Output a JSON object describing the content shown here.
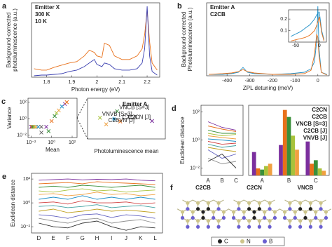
{
  "chart_data": [
    {
      "type": "line",
      "panel": "a",
      "xlabel": "Photon energy (eV)",
      "ylabel": [
        "Background-corrected",
        "photoluminescence (a.u.)"
      ],
      "legend": "upper left",
      "legend_title": "Emitter X",
      "x": [
        1.75,
        1.78,
        1.8,
        1.83,
        1.86,
        1.89,
        1.92,
        1.95,
        1.97,
        1.99,
        2.0,
        2.02,
        2.03,
        2.05,
        2.07,
        2.1,
        2.13,
        2.16,
        2.18,
        2.19,
        2.2,
        2.21,
        2.22,
        2.24
      ],
      "series": [
        {
          "name": "300 K",
          "color": "#e8701a",
          "values": [
            0.12,
            0.1,
            0.1,
            0.14,
            0.17,
            0.2,
            0.22,
            0.3,
            0.38,
            0.35,
            0.3,
            0.28,
            0.48,
            0.45,
            0.3,
            0.25,
            0.25,
            0.3,
            0.4,
            0.6,
            0.95,
            0.5,
            0.2,
            0.1
          ]
        },
        {
          "name": "10 K",
          "color": "#3a3fb0",
          "values": [
            0.02,
            0.03,
            0.03,
            0.04,
            0.05,
            0.08,
            0.1,
            0.15,
            0.2,
            0.25,
            0.18,
            0.15,
            0.2,
            0.18,
            0.12,
            0.1,
            0.1,
            0.12,
            0.2,
            0.4,
            1.0,
            0.3,
            0.08,
            0.03
          ]
        }
      ],
      "xlim": [
        1.74,
        2.25
      ],
      "ylim": [
        0,
        1.05
      ],
      "xticks": [
        1.8,
        1.9,
        2,
        2.1,
        2.2
      ]
    },
    {
      "type": "line",
      "panel": "b",
      "xlabel": "ZPL detuning (meV)",
      "ylabel": [
        "Background-corrected",
        "Photoluminescence (a.u.)"
      ],
      "legend": "upper left",
      "x": [
        -480,
        -420,
        -380,
        -350,
        -330,
        -310,
        -280,
        -200,
        -120,
        -60,
        -30,
        -15,
        -5,
        0,
        5,
        15,
        40
      ],
      "series": [
        {
          "name": "Emitter A",
          "color": "#1f8fc7",
          "values": [
            0.02,
            0.02,
            0.03,
            0.05,
            0.12,
            0.05,
            0.03,
            0.02,
            0.03,
            0.05,
            0.1,
            0.2,
            0.5,
            1.0,
            0.4,
            0.05,
            0.02
          ]
        },
        {
          "name": "C2CB",
          "color": "#e8701a",
          "values": [
            0.02,
            0.03,
            0.04,
            0.06,
            0.09,
            0.06,
            0.04,
            0.02,
            0.02,
            0.03,
            0.08,
            0.3,
            0.6,
            0.55,
            0.3,
            0.05,
            0.01
          ]
        }
      ],
      "xlim": [
        -490,
        50
      ],
      "ylim": [
        0,
        1.05
      ],
      "xticks": [
        -400,
        -300,
        -200,
        -100,
        0
      ]
    },
    {
      "type": "line",
      "x": [
        -60,
        -50,
        -40,
        -30,
        -20,
        -10,
        -5,
        0,
        5,
        10
      ],
      "series": [
        {
          "color": "#1f8fc7",
          "values": [
            0.05,
            0.07,
            0.09,
            0.12,
            0.15,
            0.2,
            0.24,
            0.26,
            0.1,
            0.02
          ]
        },
        {
          "color": "#e8701a",
          "values": [
            0.01,
            0.02,
            0.03,
            0.04,
            0.06,
            0.1,
            0.15,
            0.22,
            0.08,
            0.01
          ]
        }
      ],
      "xlim": [
        -65,
        15
      ],
      "ylim": [
        0,
        0.28
      ],
      "xticks": [
        -50,
        0
      ],
      "yticks": [
        0.1,
        0.2
      ]
    },
    {
      "type": "scatter",
      "panel": "c",
      "xlabel": "Mean",
      "ylabel": [
        "Variance"
      ],
      "xlog": true,
      "ylog": true,
      "series": [
        {
          "x": [
            0.01,
            0.012,
            0.015,
            0.02,
            0.03,
            0.05,
            0.1,
            0.3,
            1,
            2,
            3,
            5,
            10,
            20,
            30,
            0.1,
            0.5
          ],
          "values": [
            0.1,
            0.1,
            0.1,
            0.1,
            0.1,
            0.1,
            0.1,
            0.1,
            0.5,
            2,
            5,
            10,
            30,
            60,
            100,
            0.02,
            0.03
          ],
          "colors": [
            "#7b2f9e",
            "#e8701a",
            "#3a8f3a",
            "#a8c23a",
            "#f0a040",
            "#1f8fc7",
            "#606060",
            "#7b2f9e",
            "#e8701a",
            "#3a8f3a",
            "#a8c23a",
            "#f0a040",
            "#1f8fc7",
            "#7b2f9e",
            "#e8701a",
            "#606060",
            "#3a8f3a"
          ]
        }
      ],
      "xlim": [
        0.005,
        300
      ],
      "ylim": [
        0.005,
        300
      ],
      "xticks": [
        {
          "value": 0.01,
          "label": "10⁻²"
        },
        {
          "value": 1,
          "label": "10⁰"
        },
        {
          "value": 100,
          "label": "10²"
        }
      ],
      "yticks": [
        {
          "value": 0.01,
          "label": "10⁻²"
        },
        {
          "value": 1,
          "label": "10⁰"
        },
        {
          "value": 100,
          "label": "10²"
        }
      ]
    },
    {
      "type": "scatter",
      "title": "Emitter A",
      "title_color": "#1f8fc7",
      "xlabel": "Photoluminescence mean",
      "legend": "inline",
      "series": [
        {
          "name": "VNCB [S=3]",
          "color": "#3a8f3a",
          "x": [
            3.8
          ],
          "values": [
            6.8
          ]
        },
        {
          "name": "VNVB [S=3]",
          "color": "#a8c23a",
          "x": [
            1.6
          ],
          "values": [
            5.2
          ]
        },
        {
          "name": "C2CB",
          "color": "#e8701a",
          "x": [
            4.2
          ],
          "values": [
            4.3
          ]
        },
        {
          "color": "#1f8fc7",
          "marker": "star",
          "x": [
            3.4
          ],
          "values": [
            4.9
          ]
        },
        {
          "name": "C2BVN [J]",
          "color": "#f0a040",
          "x": [
            2.4
          ],
          "values": [
            3.6
          ]
        },
        {
          "name": "C2CN [J]",
          "color": "#7b2f9e",
          "x": [
            8.3
          ],
          "values": [
            4.4
          ]
        }
      ],
      "xlim": [
        0,
        10
      ],
      "ylim": [
        0,
        10
      ]
    },
    {
      "type": "line",
      "panel": "d",
      "ylabel": [
        "Euclidean distance"
      ],
      "ylog": true,
      "categories": [
        "A",
        "B",
        "C"
      ],
      "series": [
        {
          "color": "#7b2f9e",
          "values": [
            20,
            8,
            5
          ]
        },
        {
          "color": "#e8701a",
          "values": [
            10,
            6,
            4
          ]
        },
        {
          "color": "#3a8f3a",
          "values": [
            5,
            3,
            3
          ]
        },
        {
          "color": "#a8c23a",
          "values": [
            3,
            2,
            2.5
          ]
        },
        {
          "color": "#f0a040",
          "values": [
            2,
            1.5,
            1.2
          ]
        },
        {
          "color": "#1f8fc7",
          "values": [
            1.2,
            1,
            0.8
          ]
        },
        {
          "color": "#d04040",
          "values": [
            0.8,
            0.5,
            0.6
          ]
        },
        {
          "color": "#40a0a0",
          "values": [
            0.5,
            0.3,
            0.4
          ]
        },
        {
          "color": "#c0a020",
          "values": [
            0.3,
            0.2,
            0.15
          ]
        },
        {
          "color": "#6060c0",
          "values": [
            0.2,
            0.05,
            0.1
          ]
        },
        {
          "color": "#909090",
          "values": [
            0.05,
            0.02,
            0.03
          ]
        },
        {
          "color": "#303030",
          "values": [
            0.03,
            0.1,
            0.01
          ]
        }
      ],
      "ylim": [
        0.003,
        300
      ],
      "yticks": [
        {
          "value": 0.01,
          "label": "10⁻²"
        },
        {
          "value": 1,
          "label": "10⁰"
        },
        {
          "value": 100,
          "label": "10²"
        }
      ]
    },
    {
      "type": "bar",
      "legend": "upper right",
      "categories": [
        "A",
        "B",
        "C"
      ],
      "series": [
        {
          "name": "C2CN",
          "color": "#7b2f9e",
          "values": [
            1.0,
            1.3,
            1.45
          ]
        },
        {
          "name": "C2CB",
          "color": "#e8701a",
          "values": [
            0.3,
            2.8,
            0.5
          ]
        },
        {
          "name": "VNCB [S=3]",
          "color": "#3a8f3a",
          "values": [
            0.25,
            2.5,
            0.65
          ]
        },
        {
          "name": "C2CB [J]",
          "color": "#a8c23a",
          "values": [
            0.4,
            1.7,
            0.3
          ]
        },
        {
          "name": "VNVB [J]",
          "color": "#f0a040",
          "values": [
            0.5,
            1.1,
            0.2
          ]
        }
      ],
      "ylim": [
        0,
        3
      ]
    },
    {
      "type": "line",
      "panel": "e",
      "ylabel": [
        "Euclidean distance"
      ],
      "ylog": true,
      "categories": [
        "D",
        "E",
        "F",
        "G",
        "H",
        "I",
        "J",
        "K",
        "L"
      ],
      "series": [
        {
          "color": "#7b2f9e",
          "values": [
            80,
            90,
            100,
            85,
            95,
            90,
            100,
            80,
            70
          ]
        },
        {
          "color": "#e8701a",
          "values": [
            40,
            45,
            50,
            40,
            60,
            50,
            45,
            40,
            35
          ]
        },
        {
          "color": "#3a8f3a",
          "values": [
            20,
            25,
            20,
            30,
            25,
            20,
            25,
            30,
            20
          ]
        },
        {
          "color": "#a8c23a",
          "values": [
            10,
            8,
            12,
            15,
            10,
            12,
            8,
            10,
            12
          ]
        },
        {
          "color": "#f0a040",
          "values": [
            5,
            6,
            4,
            5,
            8,
            5,
            6,
            4,
            5
          ]
        },
        {
          "color": "#1f8fc7",
          "values": [
            2,
            3,
            2,
            4,
            2,
            3,
            2,
            3,
            2
          ]
        },
        {
          "color": "#d04040",
          "values": [
            1,
            1.2,
            0.8,
            1.5,
            1,
            1,
            1.2,
            0.8,
            1
          ]
        },
        {
          "color": "#40a0a0",
          "values": [
            0.5,
            0.6,
            0.4,
            0.5,
            0.7,
            0.4,
            0.5,
            0.6,
            0.4
          ]
        },
        {
          "color": "#c0a020",
          "values": [
            0.2,
            0.3,
            0.15,
            0.2,
            0.3,
            0.2,
            0.25,
            0.2,
            0.15
          ]
        },
        {
          "color": "#6060c0",
          "values": [
            0.1,
            0.08,
            0.05,
            0.1,
            0.12,
            0.06,
            0.1,
            0.08,
            0.05
          ]
        },
        {
          "color": "#909090",
          "values": [
            0.05,
            0.03,
            0.02,
            0.04,
            0.05,
            0.02,
            0.03,
            0.04,
            0.02
          ]
        },
        {
          "color": "#303030",
          "values": [
            0.02,
            0.01,
            0.008,
            0.02,
            0.03,
            0.01,
            0.005,
            0.01,
            0.008
          ]
        }
      ],
      "ylim": [
        0.003,
        300
      ],
      "yticks": [
        {
          "value": 0.01,
          "label": "10⁻²"
        },
        {
          "value": 1,
          "label": "10⁰"
        },
        {
          "value": 100,
          "label": "10²"
        }
      ]
    }
  ],
  "diagram": {
    "panel": "f",
    "titles": [
      {
        "text": "C2CB",
        "color": "#e8701a"
      },
      {
        "text": "C2CN",
        "color": "#7b2f9e"
      },
      {
        "text": "VNCB",
        "color": "#3a8f3a"
      }
    ],
    "legend": [
      "C",
      "N",
      "B"
    ]
  }
}
